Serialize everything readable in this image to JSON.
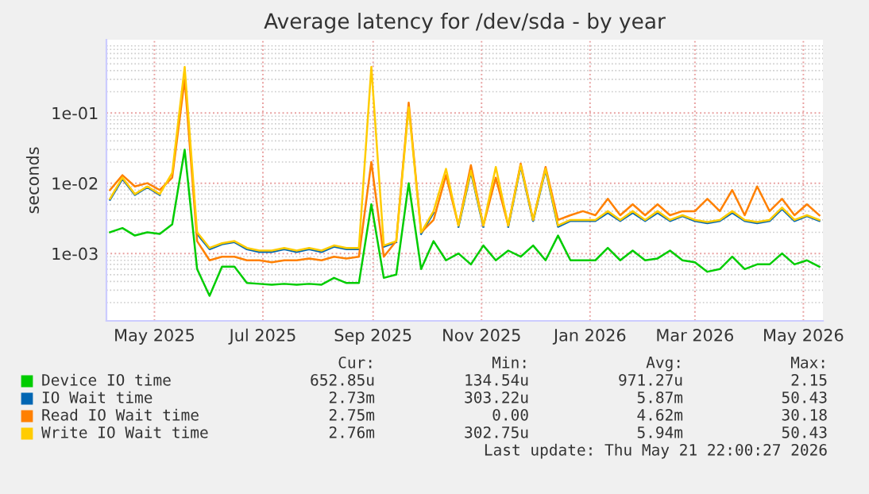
{
  "chart_data": {
    "type": "line",
    "title": "Average latency for /dev/sda - by year",
    "ylabel": "seconds",
    "log": "y",
    "grid": true,
    "legend": "bottom",
    "x": [
      "2025-04-06",
      "2025-04-13",
      "2025-04-20",
      "2025-04-27",
      "2025-05-04",
      "2025-05-11",
      "2025-05-18",
      "2025-05-25",
      "2025-06-01",
      "2025-06-08",
      "2025-06-15",
      "2025-06-22",
      "2025-06-29",
      "2025-07-06",
      "2025-07-13",
      "2025-07-20",
      "2025-07-27",
      "2025-08-03",
      "2025-08-10",
      "2025-08-17",
      "2025-08-24",
      "2025-08-31",
      "2025-09-07",
      "2025-09-14",
      "2025-09-21",
      "2025-09-28",
      "2025-10-05",
      "2025-10-12",
      "2025-10-19",
      "2025-10-26",
      "2025-11-02",
      "2025-11-09",
      "2025-11-16",
      "2025-11-23",
      "2025-11-30",
      "2025-12-07",
      "2025-12-14",
      "2025-12-21",
      "2025-12-28",
      "2026-01-04",
      "2026-01-11",
      "2026-01-18",
      "2026-01-25",
      "2026-02-01",
      "2026-02-08",
      "2026-02-15",
      "2026-02-22",
      "2026-03-01",
      "2026-03-08",
      "2026-03-15",
      "2026-03-22",
      "2026-03-29",
      "2026-04-05",
      "2026-04-12",
      "2026-04-19",
      "2026-04-26",
      "2026-05-03",
      "2026-05-10"
    ],
    "xlim": [
      "2025-04-04",
      "2026-05-12"
    ],
    "xticks": [
      {
        "value": "2025-05-01",
        "label": "May 2025"
      },
      {
        "value": "2025-07-01",
        "label": "Jul 2025"
      },
      {
        "value": "2025-09-01",
        "label": "Sep 2025"
      },
      {
        "value": "2025-11-01",
        "label": "Nov 2025"
      },
      {
        "value": "2026-01-01",
        "label": "Jan 2026"
      },
      {
        "value": "2026-03-01",
        "label": "Mar 2026"
      },
      {
        "value": "2026-05-01",
        "label": "May 2026"
      }
    ],
    "ylim": [
      0.00011,
      1.1
    ],
    "yticks": [
      {
        "value": 0.001,
        "label": "1e-03"
      },
      {
        "value": 0.01,
        "label": "1e-02"
      },
      {
        "value": 0.1,
        "label": "1e-01"
      }
    ],
    "series": [
      {
        "name": "Device IO time",
        "color": "#00cc00",
        "values": [
          0.002,
          0.0023,
          0.0018,
          0.002,
          0.0019,
          0.0026,
          0.03,
          0.0006,
          0.00025,
          0.00065,
          0.00065,
          0.00038,
          0.00037,
          0.00036,
          0.00037,
          0.00036,
          0.00037,
          0.00036,
          0.00045,
          0.00038,
          0.00038,
          0.005,
          0.00045,
          0.0005,
          0.01,
          0.0006,
          0.0015,
          0.0008,
          0.001,
          0.0007,
          0.0013,
          0.0008,
          0.0011,
          0.0009,
          0.0013,
          0.0008,
          0.0018,
          0.0008,
          0.0008,
          0.0008,
          0.0012,
          0.0008,
          0.0011,
          0.0008,
          0.00085,
          0.0011,
          0.0008,
          0.00075,
          0.00055,
          0.0006,
          0.0009,
          0.0006,
          0.0007,
          0.0007,
          0.001,
          0.0007,
          0.0008,
          0.00065
        ]
      },
      {
        "name": "IO Wait time",
        "color": "#0066b3",
        "values": [
          0.0058,
          0.0115,
          0.0068,
          0.0088,
          0.0068,
          null,
          null,
          0.0019,
          0.00115,
          0.00135,
          0.00145,
          0.00115,
          0.00105,
          0.00105,
          0.00115,
          0.00105,
          0.00115,
          0.00105,
          0.00125,
          0.00115,
          0.00115,
          null,
          0.00125,
          0.00145,
          null,
          0.0019,
          0.0038,
          null,
          0.0024,
          0.0145,
          0.0024,
          null,
          0.0024,
          0.0175,
          0.0029,
          0.0155,
          0.0024,
          0.0029,
          0.0029,
          0.0029,
          0.0038,
          0.0029,
          0.0038,
          0.0029,
          0.0038,
          0.0029,
          0.0034,
          0.0029,
          0.0027,
          0.0029,
          0.0038,
          0.0029,
          0.0027,
          0.0029,
          0.0043,
          0.0029,
          0.0034,
          0.0029
        ]
      },
      {
        "name": "Read IO Wait time",
        "color": "#ff8000",
        "values": [
          0.008,
          0.013,
          0.009,
          0.01,
          0.008,
          0.012,
          0.3,
          0.0015,
          0.0008,
          0.0009,
          0.0009,
          0.0008,
          0.0008,
          0.00075,
          0.0008,
          0.0008,
          0.00085,
          0.0008,
          0.0009,
          0.00085,
          0.0009,
          0.02,
          0.0009,
          0.0015,
          0.14,
          0.002,
          0.003,
          0.013,
          0.0025,
          0.018,
          0.0025,
          0.012,
          0.0025,
          0.019,
          0.003,
          0.017,
          0.003,
          0.0035,
          0.004,
          0.0035,
          0.006,
          0.0035,
          0.005,
          0.0035,
          0.005,
          0.0035,
          0.004,
          0.004,
          0.006,
          0.004,
          0.008,
          0.0035,
          0.009,
          0.004,
          0.006,
          0.0035,
          0.005,
          0.0035
        ]
      },
      {
        "name": "Write IO Wait time",
        "color": "#ffcc00",
        "values": [
          0.006,
          0.012,
          0.007,
          0.009,
          0.007,
          0.014,
          0.45,
          0.002,
          0.0012,
          0.0014,
          0.0015,
          0.0012,
          0.0011,
          0.0011,
          0.0012,
          0.0011,
          0.0012,
          0.0011,
          0.0013,
          0.0012,
          0.0012,
          0.45,
          0.0013,
          0.0015,
          0.12,
          0.002,
          0.004,
          0.016,
          0.0025,
          0.015,
          0.0025,
          0.017,
          0.0025,
          0.018,
          0.003,
          0.016,
          0.0025,
          0.003,
          0.003,
          0.003,
          0.004,
          0.003,
          0.004,
          0.003,
          0.004,
          0.003,
          0.0035,
          0.003,
          0.0028,
          0.003,
          0.004,
          0.003,
          0.0028,
          0.003,
          0.0045,
          0.003,
          0.0035,
          0.003
        ]
      }
    ],
    "annotations": [
      "Cur:",
      "Min:",
      "Avg:",
      "Max:",
      "652.85u",
      "134.54u",
      "971.27u",
      "2.15",
      "2.73m",
      "303.22u",
      "5.87m",
      "50.43",
      "2.75m",
      "0.00",
      "4.62m",
      "30.18",
      "2.76m",
      "302.75u",
      "5.94m",
      "50.43",
      "Last update: Thu May 21 22:00:27 2026"
    ]
  }
}
